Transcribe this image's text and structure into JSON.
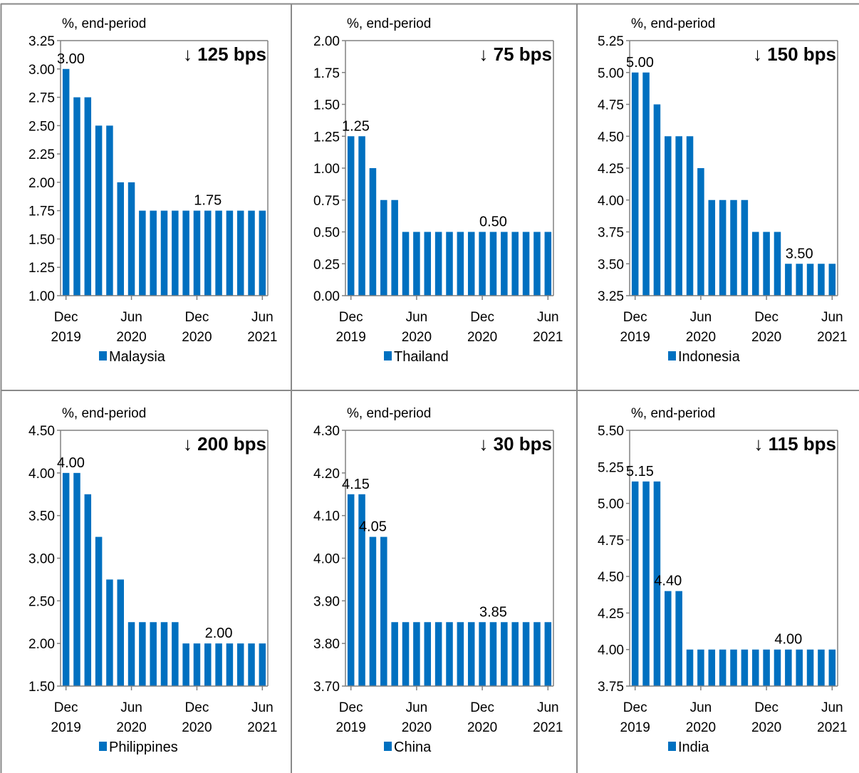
{
  "colors": {
    "bar": "#0070C0",
    "axis": "#808080",
    "grid_border": "#8a8a8a"
  },
  "x_ticks": [
    {
      "top": "Dec",
      "bottom": "2019"
    },
    {
      "top": "Jun",
      "bottom": "2020"
    },
    {
      "top": "Dec",
      "bottom": "2020"
    },
    {
      "top": "Jun",
      "bottom": "2021"
    }
  ],
  "chart_data": [
    {
      "type": "bar",
      "unit_label": "%, end-period",
      "cut_label": "↓ 125 bps",
      "series": [
        {
          "name": "Malaysia",
          "values": [
            3.0,
            2.75,
            2.75,
            2.5,
            2.5,
            2.0,
            2.0,
            1.75,
            1.75,
            1.75,
            1.75,
            1.75,
            1.75,
            1.75,
            1.75,
            1.75,
            1.75,
            1.75,
            1.75
          ]
        }
      ],
      "ylim": [
        1.0,
        3.25
      ],
      "y_ticks": [
        "1.00",
        "1.25",
        "1.50",
        "1.75",
        "2.00",
        "2.25",
        "2.50",
        "2.75",
        "3.00",
        "3.25"
      ],
      "data_labels": [
        {
          "index": 0,
          "text": "3.00"
        },
        {
          "index": 13,
          "text": "1.75"
        }
      ]
    },
    {
      "type": "bar",
      "unit_label": "%, end-period",
      "cut_label": "↓ 75 bps",
      "series": [
        {
          "name": "Thailand",
          "values": [
            1.25,
            1.25,
            1.0,
            0.75,
            0.75,
            0.5,
            0.5,
            0.5,
            0.5,
            0.5,
            0.5,
            0.5,
            0.5,
            0.5,
            0.5,
            0.5,
            0.5,
            0.5,
            0.5
          ]
        }
      ],
      "ylim": [
        0.0,
        2.0
      ],
      "y_ticks": [
        "0.00",
        "0.25",
        "0.50",
        "0.75",
        "1.00",
        "1.25",
        "1.50",
        "1.75",
        "2.00"
      ],
      "data_labels": [
        {
          "index": 0,
          "text": "1.25"
        },
        {
          "index": 13,
          "text": "0.50"
        }
      ]
    },
    {
      "type": "bar",
      "unit_label": "%, end-period",
      "cut_label": "↓ 150 bps",
      "series": [
        {
          "name": "Indonesia",
          "values": [
            5.0,
            5.0,
            4.75,
            4.5,
            4.5,
            4.5,
            4.25,
            4.0,
            4.0,
            4.0,
            4.0,
            3.75,
            3.75,
            3.75,
            3.5,
            3.5,
            3.5,
            3.5,
            3.5
          ]
        }
      ],
      "ylim": [
        3.25,
        5.25
      ],
      "y_ticks": [
        "3.25",
        "3.50",
        "3.75",
        "4.00",
        "4.25",
        "4.50",
        "4.75",
        "5.00",
        "5.25"
      ],
      "data_labels": [
        {
          "index": 0,
          "text": "5.00"
        },
        {
          "index": 15,
          "text": "3.50"
        }
      ]
    },
    {
      "type": "bar",
      "unit_label": "%, end-period",
      "cut_label": "↓ 200 bps",
      "series": [
        {
          "name": "Philippines",
          "values": [
            4.0,
            4.0,
            3.75,
            3.25,
            2.75,
            2.75,
            2.25,
            2.25,
            2.25,
            2.25,
            2.25,
            2.0,
            2.0,
            2.0,
            2.0,
            2.0,
            2.0,
            2.0,
            2.0
          ]
        }
      ],
      "ylim": [
        1.5,
        4.5
      ],
      "y_ticks": [
        "1.50",
        "2.00",
        "2.50",
        "3.00",
        "3.50",
        "4.00",
        "4.50"
      ],
      "data_labels": [
        {
          "index": 0,
          "text": "4.00"
        },
        {
          "index": 14,
          "text": "2.00"
        }
      ]
    },
    {
      "type": "bar",
      "unit_label": "%, end-period",
      "cut_label": "↓ 30 bps",
      "series": [
        {
          "name": "China",
          "values": [
            4.15,
            4.15,
            4.05,
            4.05,
            3.85,
            3.85,
            3.85,
            3.85,
            3.85,
            3.85,
            3.85,
            3.85,
            3.85,
            3.85,
            3.85,
            3.85,
            3.85,
            3.85,
            3.85
          ]
        }
      ],
      "ylim": [
        3.7,
        4.3
      ],
      "y_ticks": [
        "3.70",
        "3.80",
        "3.90",
        "4.00",
        "4.10",
        "4.20",
        "4.30"
      ],
      "data_labels": [
        {
          "index": 0,
          "text": "4.15"
        },
        {
          "index": 2,
          "text": "4.05"
        },
        {
          "index": 13,
          "text": "3.85"
        }
      ]
    },
    {
      "type": "bar",
      "unit_label": "%, end-period",
      "cut_label": "↓ 115 bps",
      "series": [
        {
          "name": "India",
          "values": [
            5.15,
            5.15,
            5.15,
            4.4,
            4.4,
            4.0,
            4.0,
            4.0,
            4.0,
            4.0,
            4.0,
            4.0,
            4.0,
            4.0,
            4.0,
            4.0,
            4.0,
            4.0,
            4.0
          ]
        }
      ],
      "ylim": [
        3.75,
        5.5
      ],
      "y_ticks": [
        "3.75",
        "4.00",
        "4.25",
        "4.50",
        "4.75",
        "5.00",
        "5.25",
        "5.50"
      ],
      "data_labels": [
        {
          "index": 0,
          "text": "5.15"
        },
        {
          "index": 3,
          "text": "4.40"
        },
        {
          "index": 14,
          "text": "4.00"
        }
      ]
    }
  ]
}
